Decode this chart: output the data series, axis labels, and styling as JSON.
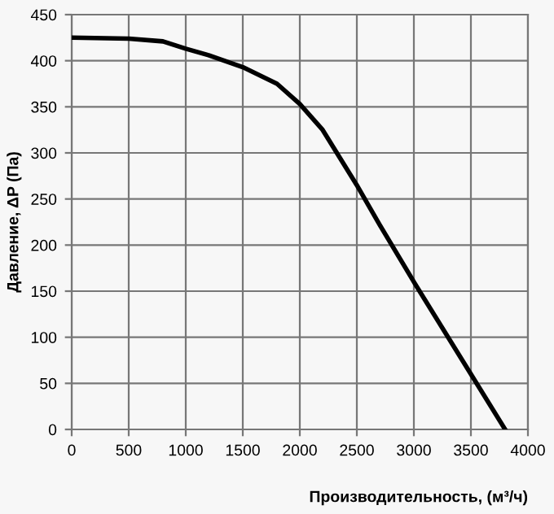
{
  "chart_data": {
    "type": "line",
    "xlabel": "Производительность, (м³/ч)",
    "ylabel": "Давление, ΔP (Па)",
    "series": [
      {
        "color": "#000000",
        "x": [
          0,
          500,
          800,
          1000,
          1200,
          1500,
          1800,
          2000,
          2200,
          2500,
          2700,
          3000,
          3500,
          3800
        ],
        "values": [
          425,
          424,
          421,
          413,
          406,
          393,
          375,
          353,
          325,
          265,
          222,
          160,
          60,
          0
        ]
      }
    ],
    "xlim": [
      0,
      4000
    ],
    "xticks": [
      0,
      500,
      1000,
      1500,
      2000,
      2500,
      3000,
      3500,
      4000
    ],
    "ylim": [
      0,
      450
    ],
    "yticks": [
      0,
      50,
      100,
      150,
      200,
      250,
      300,
      350,
      400,
      450
    ],
    "grid": true,
    "marker": "none",
    "line_style": "solid",
    "legend": false
  }
}
